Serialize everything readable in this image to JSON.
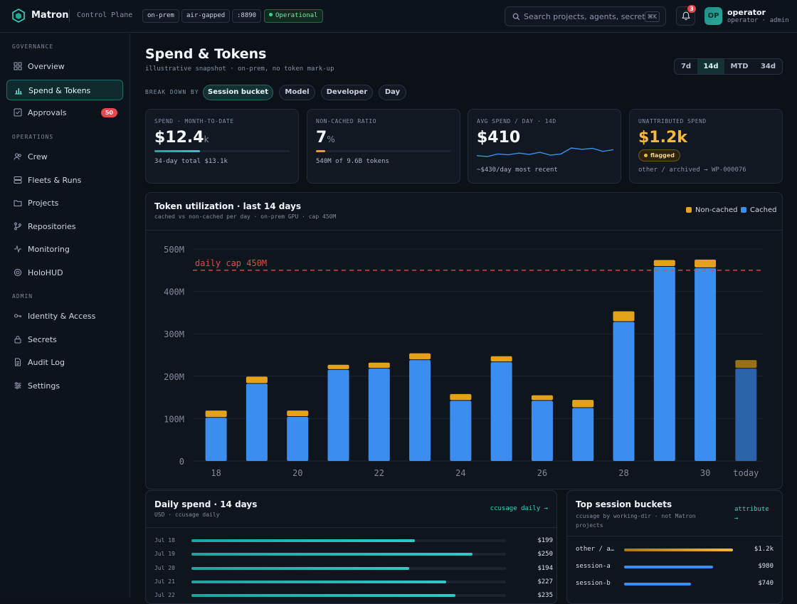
{
  "app": {
    "name": "Matron",
    "subtitle": "Control Plane"
  },
  "status_chips": [
    "on-prem",
    "air-gapped",
    ":8890",
    "Operational"
  ],
  "search": {
    "placeholder": "Search projects, agents, secrets...",
    "shortcut": "⌘K"
  },
  "notifications": {
    "count": "3"
  },
  "user": {
    "initials": "OP",
    "name": "operator",
    "role": "operator · admin"
  },
  "sidebar": {
    "sections": [
      "GOVERNANCE",
      "OPERATIONS",
      "ADMIN"
    ],
    "items": [
      {
        "label": "Overview",
        "icon": "grid-icon"
      },
      {
        "label": "Spend & Tokens",
        "icon": "bar-chart-icon",
        "active": true
      },
      {
        "label": "Approvals",
        "icon": "check-square-icon",
        "badge": "50"
      },
      {
        "label": "Crew",
        "icon": "users-icon"
      },
      {
        "label": "Fleets & Runs",
        "icon": "server-icon"
      },
      {
        "label": "Projects",
        "icon": "folder-icon"
      },
      {
        "label": "Repositories",
        "icon": "git-branch-icon"
      },
      {
        "label": "Monitoring",
        "icon": "activity-icon"
      },
      {
        "label": "HoloHUD",
        "icon": "target-icon"
      },
      {
        "label": "Identity & Access",
        "icon": "key-icon"
      },
      {
        "label": "Secrets",
        "icon": "lock-icon"
      },
      {
        "label": "Audit Log",
        "icon": "file-icon"
      },
      {
        "label": "Settings",
        "icon": "sliders-icon"
      }
    ]
  },
  "page": {
    "title": "Spend & Tokens",
    "subtitle": "illustrative snapshot · on-prem, no token mark-up",
    "ranges": [
      "7d",
      "14d",
      "MTD",
      "34d"
    ],
    "active_range": "14d",
    "breakdown_label": "BREAK DOWN BY",
    "breakdowns": [
      "Session bucket",
      "Model",
      "Developer",
      "Day"
    ],
    "active_breakdown": "Session bucket"
  },
  "kpis": {
    "spend": {
      "label": "SPEND · MONTH-TO-DATE",
      "value": "$12.4",
      "unit": "k",
      "note": "34-day total $13.1k",
      "progress": 0.34
    },
    "ratio": {
      "label": "NON-CACHED RATIO",
      "value": "7",
      "unit": "%",
      "note": "540M of 9.6B tokens",
      "progress": 0.07
    },
    "avg": {
      "label": "AVG SPEND / DAY · 14D",
      "value": "$410",
      "note": "~$430/day most recent",
      "spark": [
        395,
        390,
        405,
        400,
        410,
        402,
        415,
        398,
        405,
        440,
        432,
        438,
        420,
        430
      ]
    },
    "unattributed": {
      "label": "UNATTRIBUTED SPEND",
      "value": "$1.2k",
      "flag": "flagged",
      "note": "other / archived → WP-000076"
    }
  },
  "chart_panel": {
    "title": "Token utilization · last 14 days",
    "subtitle": "cached vs non-cached per day · on-prem GPU · cap 450M"
  },
  "chart_data": {
    "type": "bar",
    "stacked": true,
    "categories": [
      "18",
      "19",
      "20",
      "21",
      "22",
      "23",
      "24",
      "25",
      "26",
      "27",
      "28",
      "29",
      "30",
      "today"
    ],
    "series": [
      {
        "name": "Cached",
        "color": "#3b8ef0",
        "values": [
          102,
          182,
          104,
          215,
          218,
          238,
          142,
          233,
          142,
          125,
          328,
          458,
          455,
          218
        ]
      },
      {
        "name": "Non-cached",
        "color": "#e3a21a",
        "values": [
          17,
          17,
          15,
          12,
          14,
          16,
          16,
          14,
          13,
          19,
          25,
          16,
          20,
          20
        ]
      }
    ],
    "cap": {
      "value": 450,
      "label": "daily cap 450M"
    },
    "yticks": [
      "0",
      "100M",
      "200M",
      "300M",
      "400M",
      "500M"
    ],
    "xticks": [
      "18",
      "20",
      "22",
      "24",
      "26",
      "28",
      "30",
      "today"
    ],
    "ylim": [
      0,
      500
    ],
    "legend_position": "top-right"
  },
  "daily_spend": {
    "title": "Daily spend · 14 days",
    "subtitle": "USD · ccusage daily",
    "link": "ccusage daily →",
    "rows": [
      {
        "date": "Jul 18",
        "amount": "$199",
        "value": 199
      },
      {
        "date": "Jul 19",
        "amount": "$250",
        "value": 250
      },
      {
        "date": "Jul 20",
        "amount": "$194",
        "value": 194
      },
      {
        "date": "Jul 21",
        "amount": "$227",
        "value": 227
      },
      {
        "date": "Jul 22",
        "amount": "$235",
        "value": 235
      }
    ]
  },
  "top_buckets": {
    "title": "Top session buckets",
    "subtitle": "ccusage by working-dir · not Matron projects",
    "link": "attribute →",
    "rows": [
      {
        "name": "other / a…",
        "amount": "$1.2k",
        "value": 1200,
        "color": "#e3a21a"
      },
      {
        "name": "session-a",
        "amount": "$980",
        "value": 980,
        "color": "#3b8ef0"
      },
      {
        "name": "session-b",
        "amount": "$740",
        "value": 740,
        "color": "#3b8ef0"
      }
    ]
  }
}
